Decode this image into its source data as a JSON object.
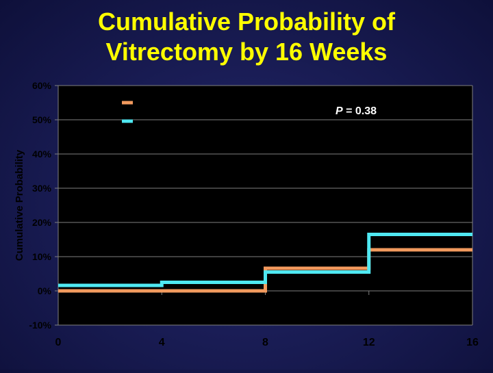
{
  "slide": {
    "title_line1": "Cumulative Probability of",
    "title_line2": "Vitrectomy by 16 Weeks"
  },
  "chart_data": {
    "type": "line",
    "step": true,
    "title": "Cumulative Probability of Vitrectomy by 16 Weeks",
    "ylabel": "Cumulative Probability",
    "xlabel": "",
    "xlim": [
      0,
      16
    ],
    "ylim": [
      -0.1,
      0.6
    ],
    "x_ticks": [
      0,
      4,
      8,
      12,
      16
    ],
    "x_tick_labels": [
      "0",
      "4",
      "8",
      "12",
      "16"
    ],
    "y_ticks": [
      -0.1,
      0,
      0.1,
      0.2,
      0.3,
      0.4,
      0.5,
      0.6
    ],
    "y_tick_labels": [
      "-10%",
      "0%",
      "10%",
      "20%",
      "30%",
      "40%",
      "50%",
      "60%"
    ],
    "grid": "horizontal",
    "legend_position": "top-left",
    "annotation": {
      "text": "P = 0.38",
      "italic_part": "P",
      "rest": " = 0.38"
    },
    "series": [
      {
        "name": "",
        "color": "#f29a5e",
        "points": [
          [
            0,
            0.0
          ],
          [
            4,
            0.0
          ],
          [
            8,
            0.066
          ],
          [
            12,
            0.12
          ],
          [
            16,
            0.12
          ]
        ]
      },
      {
        "name": "",
        "color": "#4fe8f2",
        "points": [
          [
            0,
            0.016
          ],
          [
            4,
            0.025
          ],
          [
            8,
            0.055
          ],
          [
            12,
            0.165
          ],
          [
            16,
            0.165
          ]
        ]
      }
    ],
    "colors": {
      "plot_background": "#000000",
      "gridline": "#808080",
      "axis_text": "#000000",
      "title": "#ffff00",
      "annotation": "#ffffff"
    }
  }
}
